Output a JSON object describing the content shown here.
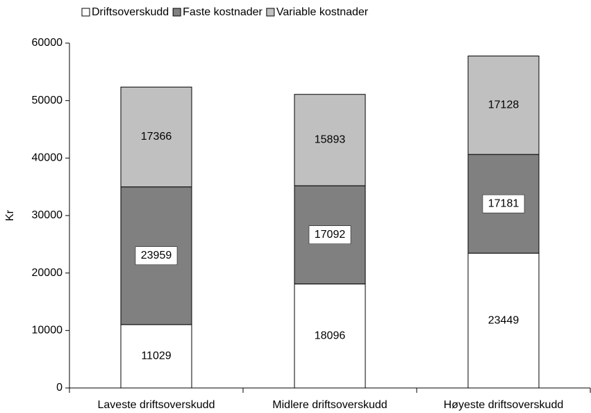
{
  "chart_data": {
    "type": "stacked_bar",
    "y_label": "Kr",
    "categories": [
      "Laveste driftsoverskudd",
      "Midlere driftsoverskudd",
      "Høyeste driftsoverskudd"
    ],
    "series": [
      {
        "name": "Driftsoverskudd",
        "color": "#ffffff",
        "values": [
          11029,
          18096,
          23449
        ]
      },
      {
        "name": "Faste kostnader",
        "color": "#808080",
        "values": [
          23959,
          17092,
          17181
        ]
      },
      {
        "name": "Variable kostnader",
        "color": "#c0c0c0",
        "values": [
          17366,
          15893,
          17128
        ]
      }
    ],
    "ylim": [
      0,
      60000
    ],
    "yticks": [
      0,
      10000,
      20000,
      30000,
      40000,
      50000,
      60000
    ],
    "legend": "top",
    "grid": false
  }
}
